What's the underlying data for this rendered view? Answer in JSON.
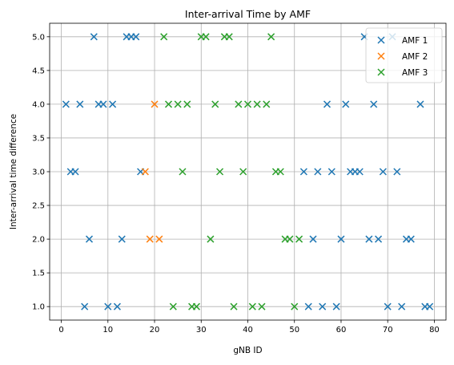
{
  "chart_data": {
    "type": "scatter",
    "title": "Inter-arrival Time by AMF",
    "xlabel": "gNB ID",
    "ylabel": "Inter-arrival time difference",
    "xlim": [
      -2.5,
      82.5
    ],
    "ylim": [
      0.8,
      5.2
    ],
    "xticks": [
      0,
      10,
      20,
      30,
      40,
      50,
      60,
      70,
      80
    ],
    "yticks": [
      1.0,
      1.5,
      2.0,
      2.5,
      3.0,
      3.5,
      4.0,
      4.5,
      5.0
    ],
    "xtick_labels": [
      "0",
      "10",
      "20",
      "30",
      "40",
      "50",
      "60",
      "70",
      "80"
    ],
    "ytick_labels": [
      "1.0",
      "1.5",
      "2.0",
      "2.5",
      "3.0",
      "3.5",
      "4.0",
      "4.5",
      "5.0"
    ],
    "grid": true,
    "legend_position": "top-right",
    "marker": "x",
    "series": [
      {
        "name": "AMF 1",
        "color": "#1f77b4",
        "points": [
          [
            1,
            4
          ],
          [
            2,
            3
          ],
          [
            3,
            3
          ],
          [
            4,
            4
          ],
          [
            5,
            1
          ],
          [
            6,
            2
          ],
          [
            7,
            5
          ],
          [
            8,
            4
          ],
          [
            9,
            4
          ],
          [
            10,
            1
          ],
          [
            11,
            4
          ],
          [
            12,
            1
          ],
          [
            13,
            2
          ],
          [
            14,
            5
          ],
          [
            15,
            5
          ],
          [
            16,
            5
          ],
          [
            17,
            3
          ],
          [
            52,
            3
          ],
          [
            53,
            1
          ],
          [
            54,
            2
          ],
          [
            55,
            3
          ],
          [
            56,
            1
          ],
          [
            57,
            4
          ],
          [
            58,
            3
          ],
          [
            59,
            1
          ],
          [
            60,
            2
          ],
          [
            61,
            4
          ],
          [
            62,
            3
          ],
          [
            63,
            3
          ],
          [
            64,
            3
          ],
          [
            65,
            5
          ],
          [
            66,
            2
          ],
          [
            67,
            4
          ],
          [
            68,
            2
          ],
          [
            69,
            3
          ],
          [
            70,
            1
          ],
          [
            71,
            5
          ],
          [
            72,
            3
          ],
          [
            73,
            1
          ],
          [
            74,
            2
          ],
          [
            75,
            2
          ],
          [
            77,
            4
          ],
          [
            78,
            1
          ],
          [
            79,
            1
          ]
        ]
      },
      {
        "name": "AMF 2",
        "color": "#ff7f0e",
        "points": [
          [
            18,
            3
          ],
          [
            19,
            2
          ],
          [
            20,
            4
          ],
          [
            21,
            2
          ]
        ]
      },
      {
        "name": "AMF 3",
        "color": "#2ca02c",
        "points": [
          [
            22,
            5
          ],
          [
            23,
            4
          ],
          [
            24,
            1
          ],
          [
            25,
            4
          ],
          [
            26,
            3
          ],
          [
            27,
            4
          ],
          [
            28,
            1
          ],
          [
            29,
            1
          ],
          [
            30,
            5
          ],
          [
            31,
            5
          ],
          [
            32,
            2
          ],
          [
            33,
            4
          ],
          [
            34,
            3
          ],
          [
            35,
            5
          ],
          [
            36,
            5
          ],
          [
            37,
            1
          ],
          [
            38,
            4
          ],
          [
            39,
            3
          ],
          [
            40,
            4
          ],
          [
            41,
            1
          ],
          [
            42,
            4
          ],
          [
            43,
            1
          ],
          [
            44,
            4
          ],
          [
            45,
            5
          ],
          [
            46,
            3
          ],
          [
            47,
            3
          ],
          [
            48,
            2
          ],
          [
            49,
            2
          ],
          [
            50,
            1
          ],
          [
            51,
            2
          ]
        ]
      }
    ]
  }
}
